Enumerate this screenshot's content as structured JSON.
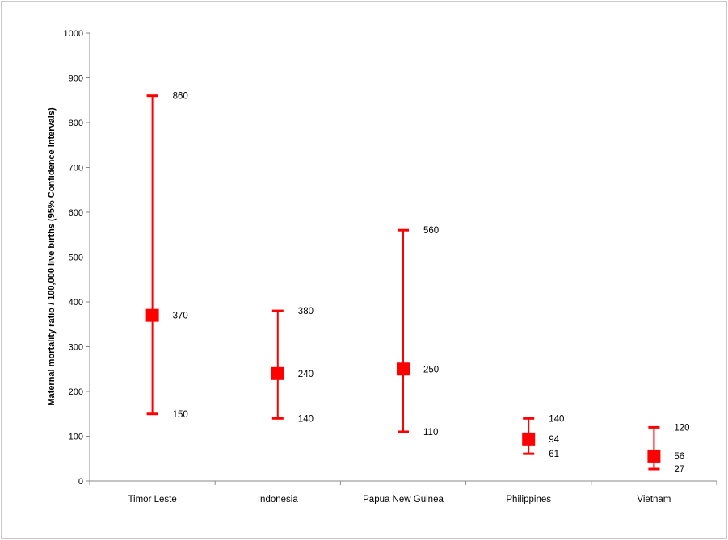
{
  "chart_data": {
    "type": "error-bar",
    "title": "",
    "xlabel": "",
    "ylabel": "Maternal mortality ratio / 100,000 live births (95% Confidence Intervals)",
    "ylim": [
      0,
      1000
    ],
    "yticks": [
      "0",
      "100",
      "200",
      "300",
      "400",
      "500",
      "600",
      "700",
      "800",
      "900",
      "1000"
    ],
    "grid": false,
    "color": "#ff0000",
    "categories": [
      "Timor Leste",
      "Indonesia",
      "Papua New Guinea",
      "Philippines",
      "Vietnam"
    ],
    "points": [
      {
        "category": "Timor Leste",
        "value": 370,
        "low": 150,
        "high": 860
      },
      {
        "category": "Indonesia",
        "value": 240,
        "low": 140,
        "high": 380
      },
      {
        "category": "Papua New Guinea",
        "value": 250,
        "low": 110,
        "high": 560
      },
      {
        "category": "Philippines",
        "value": 94,
        "low": 61,
        "high": 140
      },
      {
        "category": "Vietnam",
        "value": 56,
        "low": 27,
        "high": 120
      }
    ]
  }
}
